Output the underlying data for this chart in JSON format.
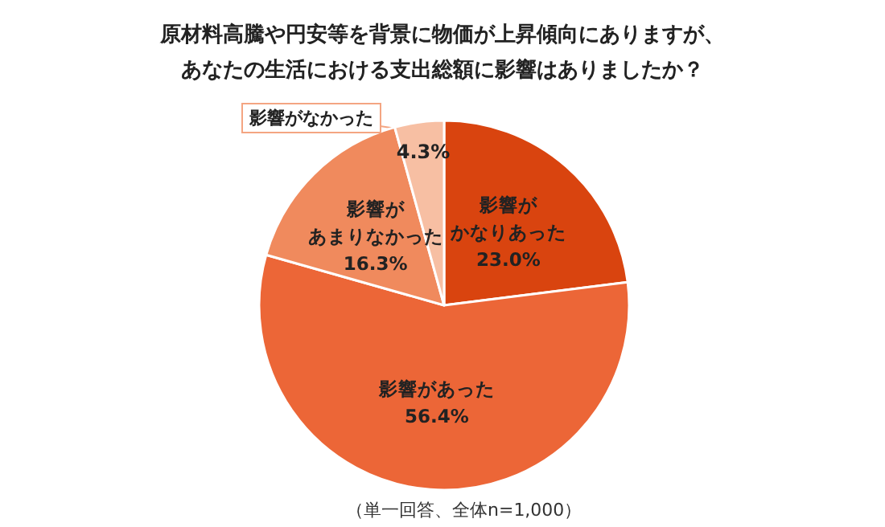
{
  "chart_data": {
    "type": "pie",
    "title": "原材料高騰や円安等を背景に物価が上昇傾向にありますが、あなたの生活における支出総額に影響はありましたか？",
    "categories": [
      "影響がかなりあった",
      "影響があった",
      "影響があまりなかった",
      "影響がなかった"
    ],
    "values": [
      23.0,
      56.4,
      16.3,
      4.3
    ],
    "value_labels": [
      "23.0%",
      "56.4%",
      "16.3%",
      "4.3%"
    ],
    "colors": [
      "#d9440f",
      "#ec6637",
      "#f08a5d",
      "#f7bfa3"
    ],
    "legend": false,
    "annotations": [
      "（単一回答、全体n=1,000）"
    ]
  }
}
